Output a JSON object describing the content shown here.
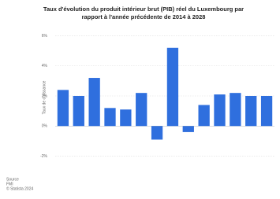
{
  "chart_data": {
    "type": "bar",
    "title": "Taux d'évolution du produit intérieur brut (PIB) réel du Luxembourg par rapport à l'année précédente de 2014 à 2028",
    "y_label": "Taux de croissance",
    "categories": [
      null,
      null,
      null,
      null,
      null,
      null,
      null,
      null,
      null,
      null,
      null,
      null,
      null,
      null
    ],
    "values": [
      2.4,
      2.0,
      3.2,
      1.2,
      1.1,
      2.2,
      -0.9,
      5.2,
      -0.4,
      1.4,
      2.1,
      2.2,
      2.0,
      2.0
    ],
    "color": "#2f6fde",
    "ylim": [
      -2.6,
      6.6
    ],
    "yticks": [
      {
        "value": -2,
        "label": "-2%"
      },
      {
        "value": 0,
        "label": "0%"
      },
      {
        "value": 2,
        "label": "2%"
      },
      {
        "value": 4,
        "label": "4%"
      },
      {
        "value": 6,
        "label": "6%"
      }
    ],
    "grid": true,
    "source": [
      "Source",
      "FMI",
      "© Statista 2024"
    ]
  }
}
